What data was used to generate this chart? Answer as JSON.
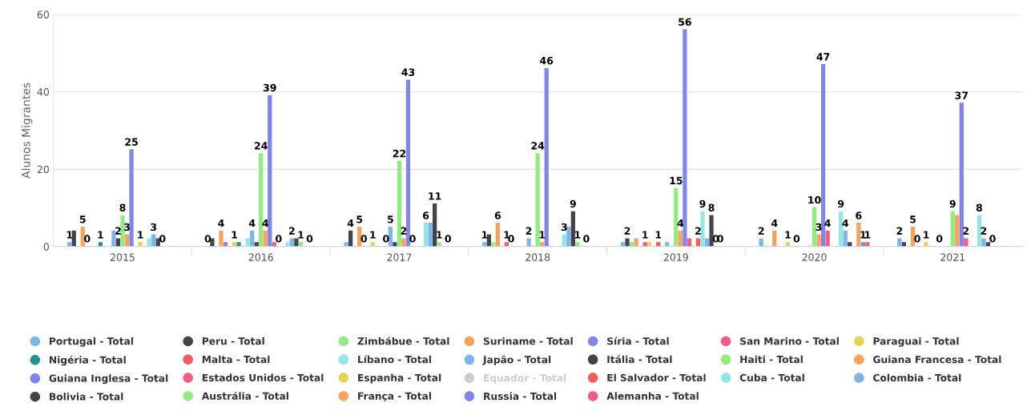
{
  "chart_data": {
    "type": "bar",
    "ylabel": "Alunos Migrantes",
    "categories": [
      "2015",
      "2016",
      "2017",
      "2018",
      "2019",
      "2020",
      "2021"
    ],
    "ylim": [
      0,
      60
    ],
    "yticks": [
      0,
      20,
      40,
      60
    ],
    "grid": "y",
    "legend": "bottom",
    "series": [
      {
        "name": "Portugal - Total",
        "color": "#7cb5ec",
        "values": [
          1,
          0,
          1,
          1,
          1,
          2,
          2
        ],
        "value_labels": [
          "1",
          "0",
          null,
          "1",
          null,
          "2",
          "2"
        ]
      },
      {
        "name": "Peru - Total",
        "color": "#434348",
        "values": [
          4,
          2,
          4,
          3,
          2,
          0,
          1
        ],
        "value_labels": [
          null,
          null,
          "4",
          null,
          "2",
          null,
          null
        ]
      },
      {
        "name": "Zimbábue - Total",
        "color": "#90ed7d",
        "values": [
          0,
          0,
          0,
          1,
          1,
          0,
          0
        ],
        "value_labels": [
          null,
          null,
          null,
          null,
          null,
          null,
          null
        ]
      },
      {
        "name": "Suriname - Total",
        "color": "#f7a35c",
        "values": [
          5,
          4,
          5,
          6,
          2,
          4,
          5
        ],
        "value_labels": [
          "5",
          "4",
          "5",
          "6",
          null,
          "4",
          "5"
        ]
      },
      {
        "name": "Síria - Total",
        "color": "#8085e9",
        "values": [
          0,
          1,
          0,
          0,
          0,
          0,
          0
        ],
        "value_labels": [
          "0",
          null,
          "0",
          null,
          null,
          null,
          "0"
        ]
      },
      {
        "name": "San Marino - Total",
        "color": "#f15c80",
        "values": [
          0,
          0,
          0,
          1,
          1,
          0,
          0
        ],
        "value_labels": [
          null,
          null,
          null,
          "1",
          "1",
          null,
          null
        ]
      },
      {
        "name": "Paraguai - Total",
        "color": "#e4d354",
        "values": [
          0,
          1,
          1,
          0,
          1,
          1,
          1
        ],
        "value_labels": [
          null,
          "1",
          "1",
          "0",
          null,
          "1",
          "1"
        ]
      },
      {
        "name": "Nigéria - Total",
        "color": "#2b908f",
        "values": [
          1,
          1,
          0,
          0,
          0,
          0,
          0
        ],
        "value_labels": [
          "1",
          null,
          null,
          null,
          null,
          null,
          null
        ]
      },
      {
        "name": "Malta - Total",
        "color": "#f45b5b",
        "values": [
          0,
          0,
          0,
          0,
          1,
          0,
          0
        ],
        "value_labels": [
          null,
          null,
          null,
          null,
          "1",
          "0",
          null
        ]
      },
      {
        "name": "Líbano - Total",
        "color": "#91e8e1",
        "values": [
          0,
          2,
          0,
          0,
          0,
          0,
          0
        ],
        "value_labels": [
          null,
          null,
          "0",
          null,
          null,
          null,
          "0"
        ]
      },
      {
        "name": "Japão - Total",
        "color": "#7cb5ec",
        "values": [
          4,
          4,
          5,
          2,
          1,
          0,
          0
        ],
        "value_labels": [
          null,
          "4",
          "5",
          "2",
          null,
          null,
          null
        ]
      },
      {
        "name": "Itália - Total",
        "color": "#434348",
        "values": [
          2,
          1,
          1,
          0,
          0,
          0,
          0
        ],
        "value_labels": [
          "2",
          null,
          null,
          null,
          null,
          null,
          null
        ]
      },
      {
        "name": "Haiti - Total",
        "color": "#90ed7d",
        "values": [
          8,
          24,
          22,
          24,
          15,
          10,
          9
        ],
        "value_labels": [
          "8",
          "24",
          "22",
          "24",
          "15",
          "10",
          "9"
        ]
      },
      {
        "name": "Guiana Francesa - Total",
        "color": "#f7a35c",
        "values": [
          3,
          4,
          2,
          1,
          4,
          3,
          8
        ],
        "value_labels": [
          "3",
          "4",
          "2",
          "1",
          "4",
          "3",
          null
        ]
      },
      {
        "name": "Guiana Inglesa - Total",
        "color": "#8085e9",
        "values": [
          25,
          39,
          43,
          46,
          56,
          47,
          37
        ],
        "value_labels": [
          "25",
          "39",
          "43",
          "46",
          "56",
          "47",
          "37"
        ]
      },
      {
        "name": "Estados Unidos - Total",
        "color": "#f15c80",
        "values": [
          0,
          1,
          0,
          0,
          2,
          4,
          2
        ],
        "value_labels": [
          null,
          null,
          "0",
          null,
          null,
          "4",
          "2"
        ]
      },
      {
        "name": "Espanha - Total",
        "color": "#e4d354",
        "values": [
          1,
          0,
          0,
          0,
          0,
          0,
          0
        ],
        "value_labels": [
          "1",
          "0",
          null,
          null,
          null,
          null,
          null
        ]
      },
      {
        "name": "Equador - Total",
        "color": "#cccccc",
        "values": [
          null,
          null,
          null,
          null,
          null,
          null,
          null
        ]
      },
      {
        "name": "El Salvador - Total",
        "color": "#f45b5b",
        "values": [
          0,
          0,
          0,
          0,
          2,
          0,
          0
        ],
        "value_labels": [
          null,
          null,
          null,
          null,
          "2",
          null,
          null
        ]
      },
      {
        "name": "Cuba - Total",
        "color": "#91e8e1",
        "values": [
          2,
          1,
          6,
          3,
          9,
          9,
          8
        ],
        "value_labels": [
          null,
          null,
          "6",
          "3",
          "9",
          "9",
          "8"
        ]
      },
      {
        "name": "Colombia - Total",
        "color": "#7cb5ec",
        "values": [
          3,
          2,
          6,
          5,
          2,
          4,
          2
        ],
        "value_labels": [
          "3",
          "2",
          null,
          null,
          null,
          "4",
          "2"
        ]
      },
      {
        "name": "Bolivia - Total",
        "color": "#434348",
        "values": [
          2,
          2,
          11,
          9,
          8,
          1,
          1
        ],
        "value_labels": [
          null,
          null,
          "11",
          "9",
          "8",
          null,
          null
        ]
      },
      {
        "name": "Austrália - Total",
        "color": "#90ed7d",
        "values": [
          0,
          1,
          1,
          1,
          0,
          0,
          0
        ],
        "value_labels": [
          "0",
          "1",
          "1",
          "1",
          "0",
          null,
          "0"
        ]
      },
      {
        "name": "França - Total",
        "color": "#f7a35c",
        "values": [
          0,
          0,
          0,
          0,
          0,
          6,
          0
        ],
        "value_labels": [
          null,
          null,
          null,
          null,
          "0",
          "6",
          null
        ]
      },
      {
        "name": "Russia - Total",
        "color": "#8085e9",
        "values": [
          0,
          0,
          0,
          0,
          0,
          1,
          0
        ],
        "value_labels": [
          null,
          "0",
          "0",
          "0",
          null,
          "1",
          null
        ]
      },
      {
        "name": "Alemanha - Total",
        "color": "#f15c80",
        "values": [
          0,
          0,
          0,
          0,
          0,
          1,
          0
        ],
        "value_labels": [
          null,
          null,
          null,
          null,
          null,
          "1",
          null
        ]
      }
    ]
  }
}
